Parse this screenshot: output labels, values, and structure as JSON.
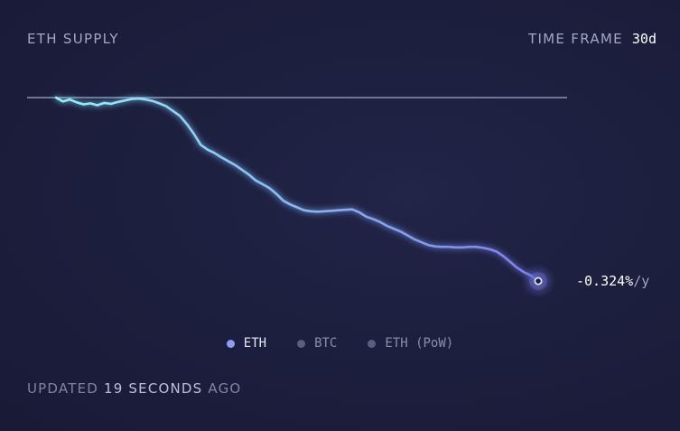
{
  "header": {
    "title": "ETH SUPPLY",
    "timeframe_label": "TIME FRAME",
    "timeframe_value": "30d"
  },
  "footer": {
    "updated_prefix": "UPDATED",
    "updated_value": "19 SECONDS",
    "updated_suffix": "AGO"
  },
  "colors": {
    "line_start": "#8ff3ff",
    "line_end": "#7b7ff0",
    "baseline": "#a5a9c6"
  },
  "chart_data": {
    "type": "line",
    "title": "ETH SUPPLY",
    "xlabel": "",
    "ylabel": "",
    "grid": false,
    "baseline": 0,
    "end_label": "-0.324%/y",
    "series": [
      {
        "name": "ETH",
        "values": [
          0.0,
          -0.008,
          -0.004,
          -0.01,
          -0.014,
          -0.012,
          -0.016,
          -0.011,
          -0.013,
          -0.009,
          -0.006,
          -0.003,
          -0.002,
          -0.004,
          -0.007,
          -0.012,
          -0.018,
          -0.028,
          -0.038,
          -0.055,
          -0.075,
          -0.098,
          -0.108,
          -0.115,
          -0.124,
          -0.132,
          -0.14,
          -0.15,
          -0.16,
          -0.172,
          -0.18,
          -0.188,
          -0.2,
          -0.214,
          -0.222,
          -0.228,
          -0.234,
          -0.236,
          -0.237,
          -0.236,
          -0.235,
          -0.234,
          -0.233,
          -0.232,
          -0.238,
          -0.247,
          -0.252,
          -0.258,
          -0.266,
          -0.272,
          -0.278,
          -0.286,
          -0.294,
          -0.3,
          -0.306,
          -0.309,
          -0.31,
          -0.31,
          -0.311,
          -0.311,
          -0.31,
          -0.31,
          -0.312,
          -0.315,
          -0.32,
          -0.33,
          -0.342,
          -0.354,
          -0.363,
          -0.37,
          -0.381
        ]
      }
    ],
    "legend": {
      "placement": "bottom-center",
      "items": [
        {
          "label": "ETH",
          "active": true
        },
        {
          "label": "BTC",
          "active": false
        },
        {
          "label": "ETH (PoW)",
          "active": false
        }
      ]
    }
  }
}
